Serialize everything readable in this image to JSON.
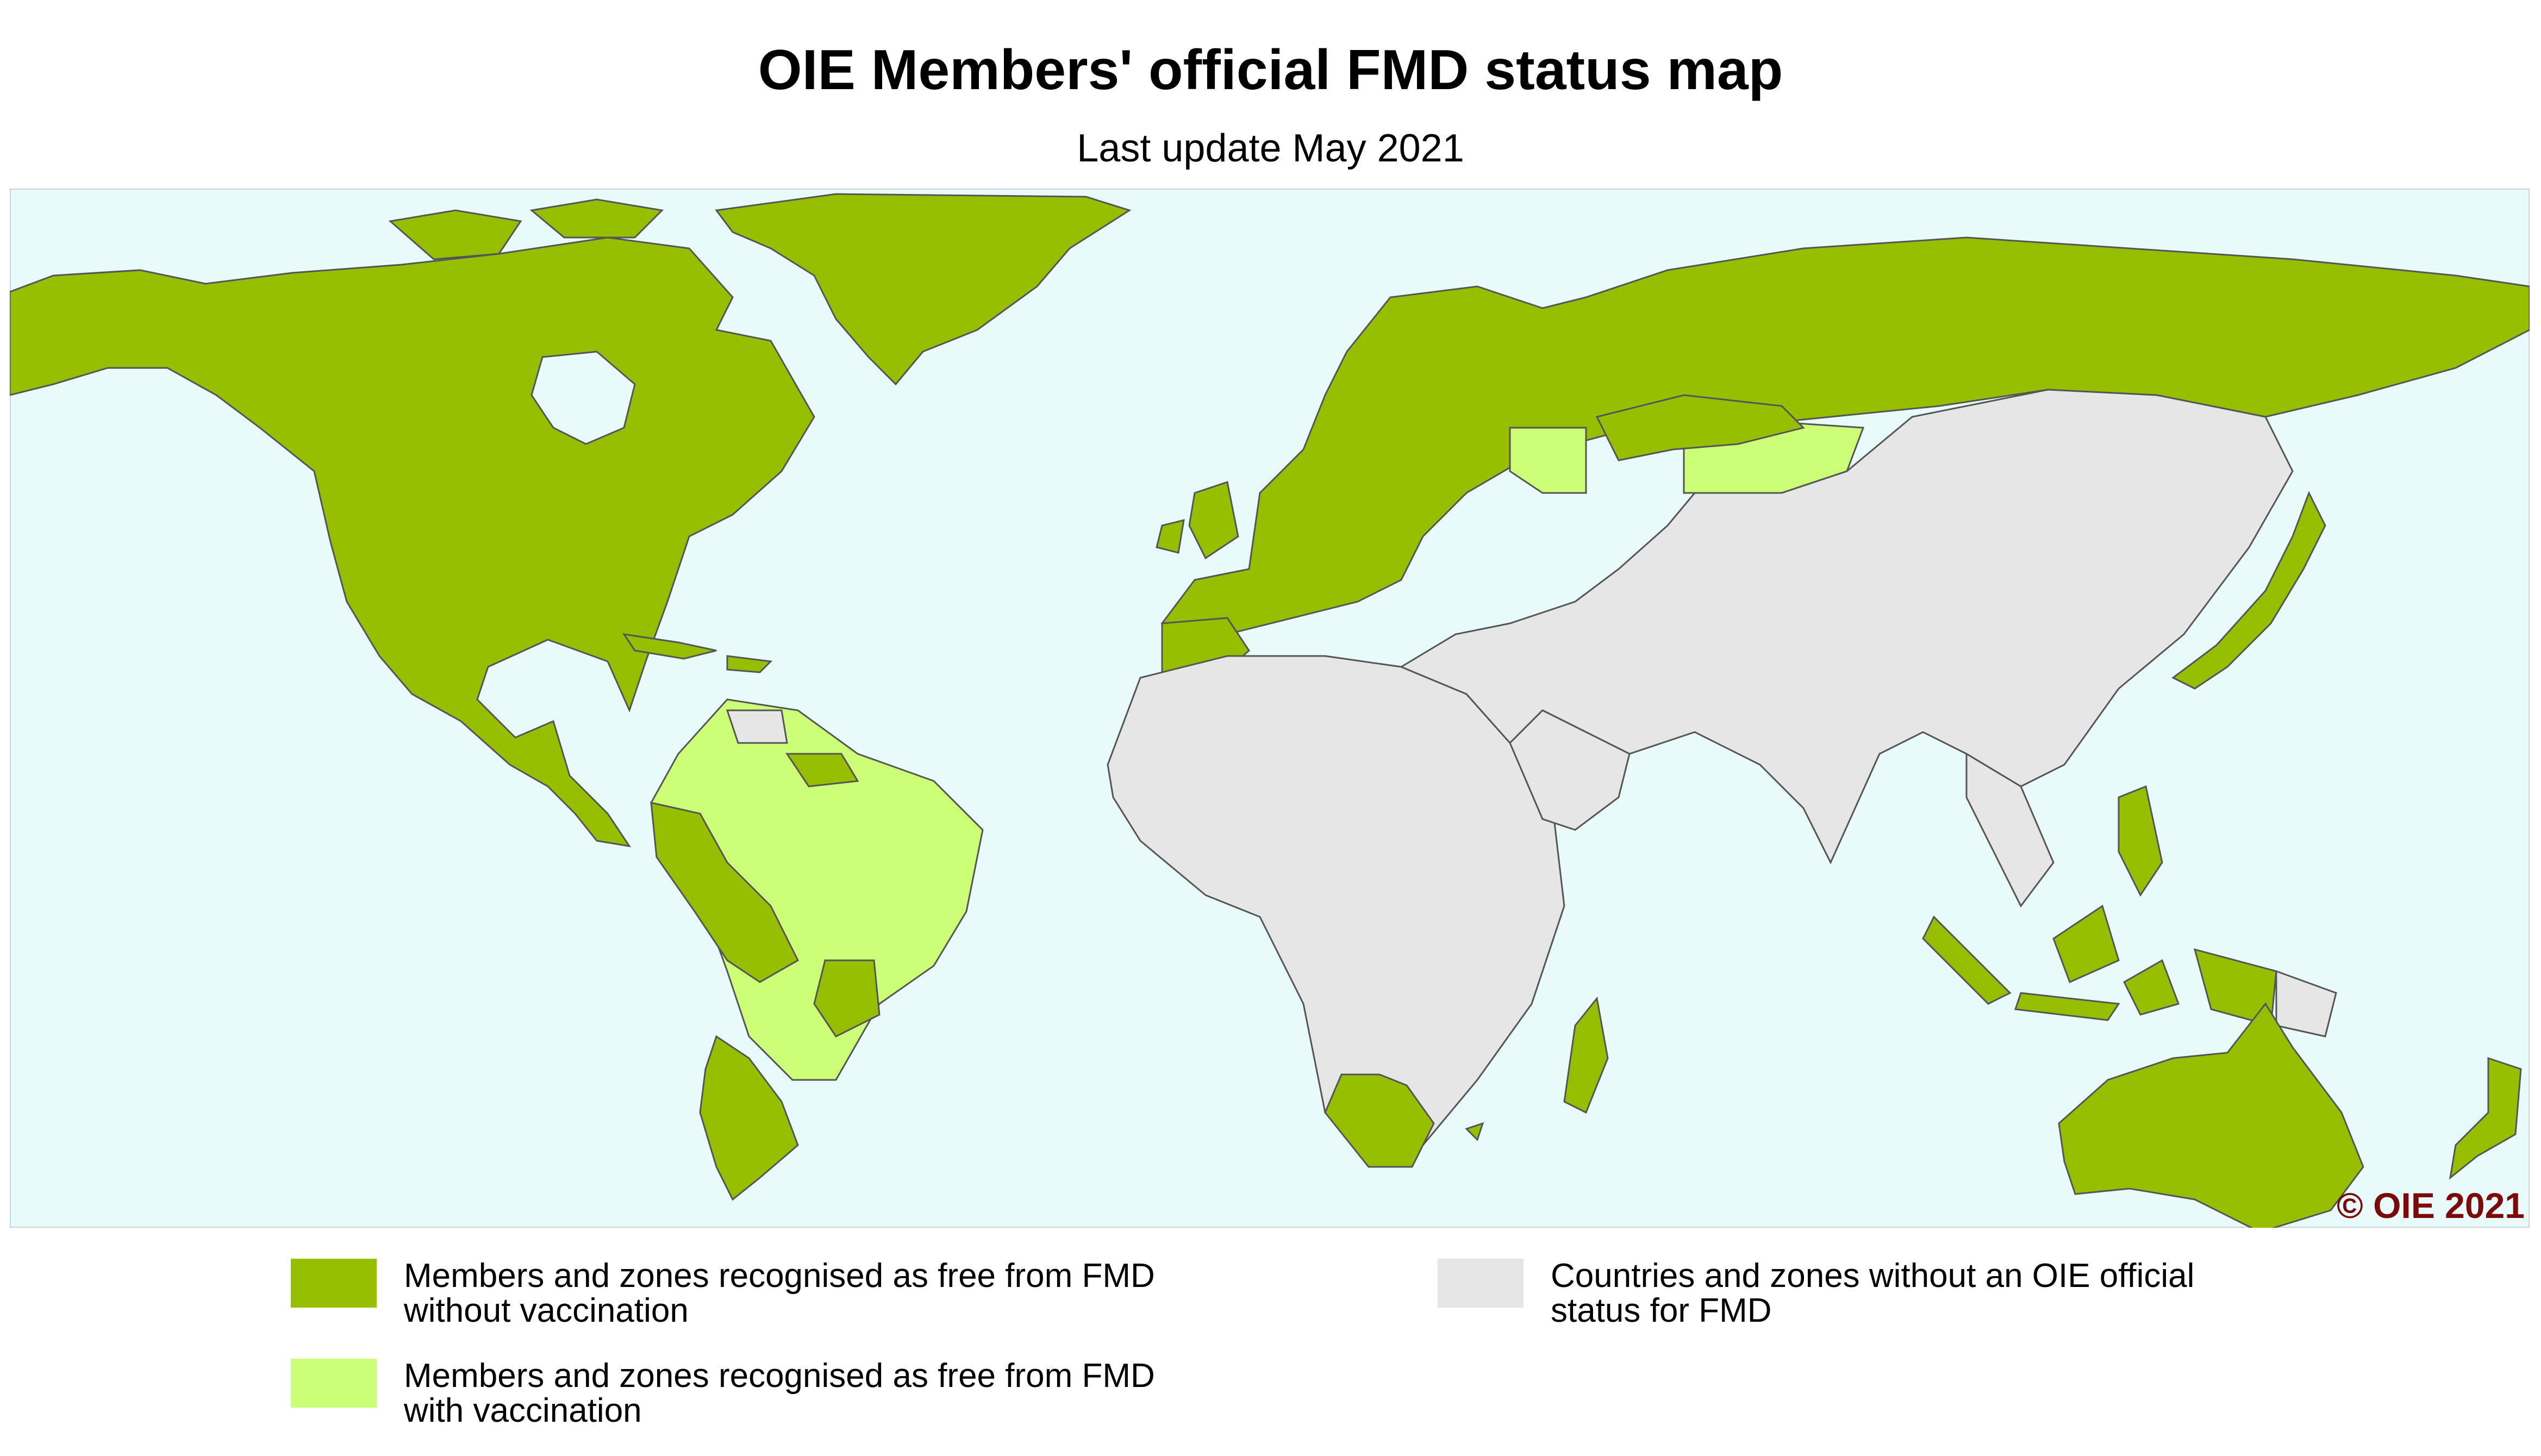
{
  "title": "OIE Members' official FMD status map",
  "subtitle": "Last update May 2021",
  "copyright": "© OIE 2021",
  "colors": {
    "ocean": "#e9fafa",
    "free_without_vaccination": "#95bf00",
    "free_with_vaccination": "#ccff77",
    "no_official_status": "#e6e6e6",
    "border": "#555555"
  },
  "legend": [
    {
      "key": "free_without_vaccination",
      "line1": "Members and zones recognised as free from FMD",
      "line2": "without vaccination",
      "color": "#95bf00"
    },
    {
      "key": "free_with_vaccination",
      "line1": "Members and zones recognised as free from FMD",
      "line2": "with vaccination",
      "color": "#ccff77"
    },
    {
      "key": "no_official_status",
      "line1": "Countries and zones without an OIE official",
      "line2": "status for FMD",
      "color": "#e6e6e6"
    }
  ]
}
